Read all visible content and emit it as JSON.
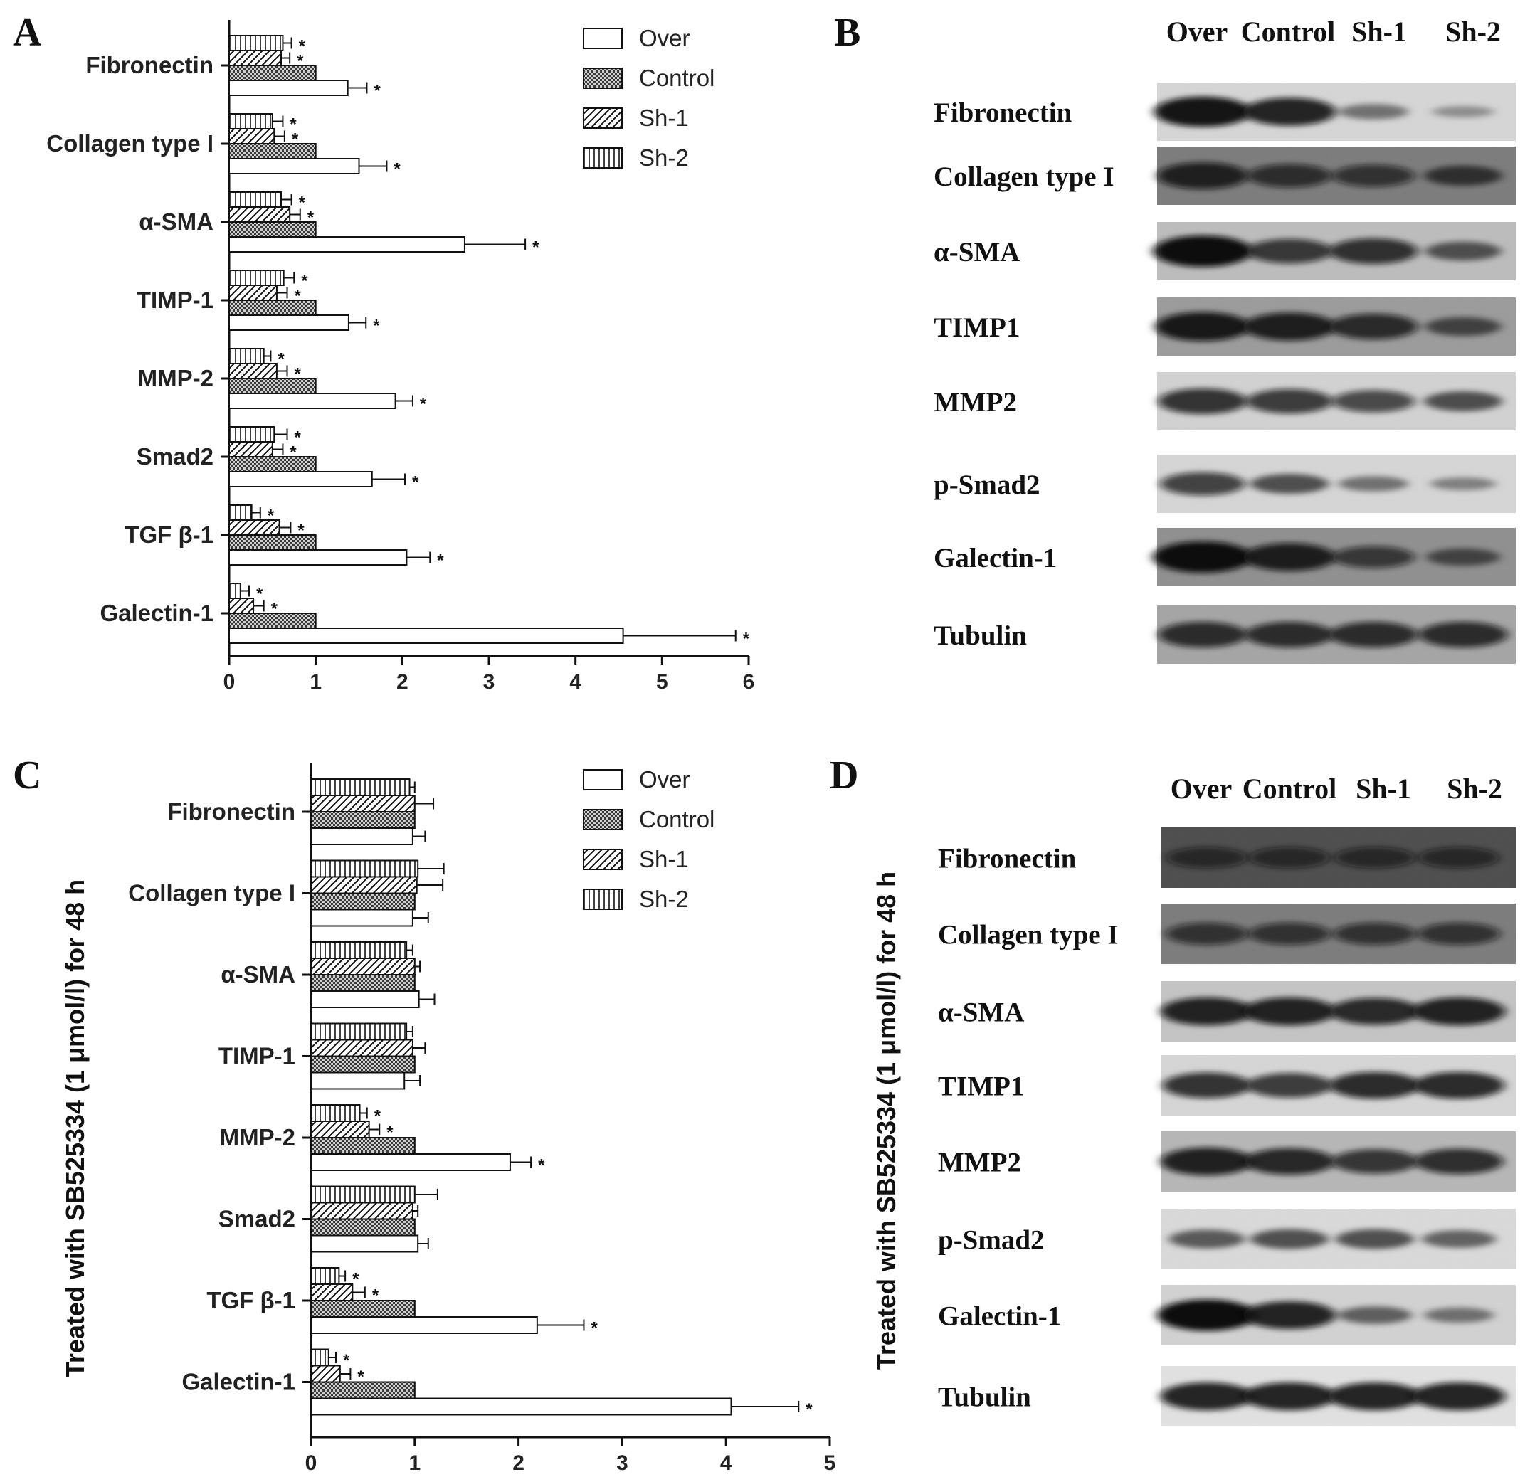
{
  "legend": [
    {
      "name": "Over",
      "fill": "url(#pat-white)"
    },
    {
      "name": "Control",
      "fill": "url(#pat-check)"
    },
    {
      "name": "Sh-1",
      "fill": "url(#pat-diag)"
    },
    {
      "name": "Sh-2",
      "fill": "url(#pat-vert)"
    }
  ],
  "chart_data": [
    {
      "type": "bar",
      "orientation": "horizontal",
      "panel": "A",
      "ylabel": "",
      "categories": [
        "Fibronectin",
        "Collagen type I",
        "α-SMA",
        "TIMP-1",
        "MMP-2",
        "Smad2",
        "TGF β-1",
        "Galectin-1"
      ],
      "xlim": [
        0,
        6
      ],
      "xticks": [
        0,
        1,
        2,
        3,
        4,
        5,
        6
      ],
      "series": [
        {
          "name": "Over",
          "values": [
            1.37,
            1.5,
            2.72,
            1.38,
            1.92,
            1.65,
            2.05,
            4.55
          ],
          "errors": [
            0.22,
            0.32,
            0.7,
            0.2,
            0.2,
            0.38,
            0.27,
            1.3
          ],
          "sig": [
            true,
            true,
            true,
            true,
            true,
            true,
            true,
            true
          ]
        },
        {
          "name": "Control",
          "values": [
            1,
            1,
            1,
            1,
            1,
            1,
            1,
            1
          ],
          "errors": [
            0,
            0,
            0,
            0,
            0,
            0,
            0,
            0
          ],
          "sig": [
            false,
            false,
            false,
            false,
            false,
            false,
            false,
            false
          ]
        },
        {
          "name": "Sh-1",
          "values": [
            0.6,
            0.52,
            0.7,
            0.55,
            0.55,
            0.5,
            0.58,
            0.28
          ],
          "errors": [
            0.1,
            0.12,
            0.12,
            0.12,
            0.12,
            0.12,
            0.13,
            0.12
          ],
          "sig": [
            true,
            true,
            true,
            true,
            true,
            true,
            true,
            true
          ]
        },
        {
          "name": "Sh-2",
          "values": [
            0.62,
            0.5,
            0.6,
            0.63,
            0.4,
            0.52,
            0.26,
            0.13
          ],
          "errors": [
            0.1,
            0.12,
            0.12,
            0.12,
            0.08,
            0.15,
            0.1,
            0.1
          ],
          "sig": [
            true,
            true,
            true,
            true,
            true,
            true,
            true,
            true
          ]
        }
      ]
    },
    {
      "type": "bar",
      "orientation": "horizontal",
      "panel": "C",
      "ylabel": "Treated with SB525334 (1 μmol/l) for 48 h",
      "categories": [
        "Fibronectin",
        "Collagen type I",
        "α-SMA",
        "TIMP-1",
        "MMP-2",
        "Smad2",
        "TGF β-1",
        "Galectin-1"
      ],
      "xlim": [
        0,
        5
      ],
      "xticks": [
        0,
        1,
        2,
        3,
        4,
        5
      ],
      "series": [
        {
          "name": "Over",
          "values": [
            0.98,
            0.98,
            1.04,
            0.9,
            1.92,
            1.03,
            2.18,
            4.05
          ],
          "errors": [
            0.12,
            0.15,
            0.15,
            0.15,
            0.2,
            0.1,
            0.45,
            0.65
          ],
          "sig": [
            false,
            false,
            false,
            false,
            true,
            false,
            true,
            true
          ]
        },
        {
          "name": "Control",
          "values": [
            1,
            1,
            1,
            1,
            1,
            1,
            1,
            1
          ],
          "errors": [
            0,
            0,
            0,
            0,
            0,
            0,
            0,
            0
          ],
          "sig": [
            false,
            false,
            false,
            false,
            false,
            false,
            false,
            false
          ]
        },
        {
          "name": "Sh-1",
          "values": [
            1,
            1.02,
            1.0,
            0.98,
            0.56,
            0.98,
            0.4,
            0.28
          ],
          "errors": [
            0.18,
            0.25,
            0.05,
            0.12,
            0.1,
            0.05,
            0.12,
            0.1
          ],
          "sig": [
            false,
            false,
            false,
            false,
            true,
            false,
            true,
            true
          ]
        },
        {
          "name": "Sh-2",
          "values": [
            0.95,
            1.03,
            0.92,
            0.92,
            0.47,
            1.0,
            0.27,
            0.17
          ],
          "errors": [
            0.05,
            0.25,
            0.06,
            0.06,
            0.07,
            0.22,
            0.06,
            0.07
          ],
          "sig": [
            false,
            false,
            false,
            false,
            true,
            false,
            true,
            true
          ]
        }
      ]
    }
  ],
  "blots": [
    {
      "panel": "B",
      "lanes": [
        "Over",
        "Control",
        "Sh-1",
        "Sh-2"
      ],
      "rows": [
        {
          "label": "Fibronectin",
          "bg": "#d6d6d6",
          "intensity": [
            0.95,
            0.85,
            0.3,
            0.12
          ]
        },
        {
          "label": "Collagen type I",
          "bg": "#7a7a7a",
          "intensity": [
            0.8,
            0.65,
            0.6,
            0.5
          ]
        },
        {
          "label": "α-SMA",
          "bg": "#bcbcbc",
          "intensity": [
            1.0,
            0.7,
            0.75,
            0.45
          ]
        },
        {
          "label": "TIMP1",
          "bg": "#9a9a9a",
          "intensity": [
            0.9,
            0.85,
            0.75,
            0.45
          ]
        },
        {
          "label": "MMP2",
          "bg": "#d2d2d2",
          "intensity": [
            0.75,
            0.7,
            0.6,
            0.5
          ]
        },
        {
          "label": "p-Smad2",
          "bg": "#d6d6d6",
          "intensity": [
            0.65,
            0.5,
            0.3,
            0.2
          ]
        },
        {
          "label": "Galectin-1",
          "bg": "#8e8e8e",
          "intensity": [
            1.0,
            0.85,
            0.6,
            0.4
          ]
        },
        {
          "label": "Tubulin",
          "bg": "#a4a4a4",
          "intensity": [
            0.75,
            0.75,
            0.75,
            0.75
          ]
        }
      ]
    },
    {
      "panel": "D",
      "ylabel": "Treated with SB525334 (1 μmol/l) for 48 h",
      "lanes": [
        "Over",
        "Control",
        "Sh-1",
        "Sh-2"
      ],
      "rows": [
        {
          "label": "Fibronectin",
          "bg": "#4a4a4a",
          "intensity": [
            0.55,
            0.55,
            0.55,
            0.55
          ]
        },
        {
          "label": "Collagen type I",
          "bg": "#7a7a7a",
          "intensity": [
            0.6,
            0.6,
            0.6,
            0.6
          ]
        },
        {
          "label": "α-SMA",
          "bg": "#c4c4c4",
          "intensity": [
            0.85,
            0.85,
            0.8,
            0.85
          ]
        },
        {
          "label": "TIMP1",
          "bg": "#d6d6d6",
          "intensity": [
            0.75,
            0.7,
            0.8,
            0.8
          ]
        },
        {
          "label": "MMP2",
          "bg": "#b6b6b6",
          "intensity": [
            0.85,
            0.8,
            0.7,
            0.75
          ]
        },
        {
          "label": "p-Smad2",
          "bg": "#dadada",
          "intensity": [
            0.45,
            0.5,
            0.5,
            0.4
          ]
        },
        {
          "label": "Galectin-1",
          "bg": "#d2d2d2",
          "intensity": [
            1.0,
            0.85,
            0.4,
            0.3
          ]
        },
        {
          "label": "Tubulin",
          "bg": "#e2e2e2",
          "intensity": [
            0.85,
            0.85,
            0.85,
            0.85
          ]
        }
      ]
    }
  ]
}
